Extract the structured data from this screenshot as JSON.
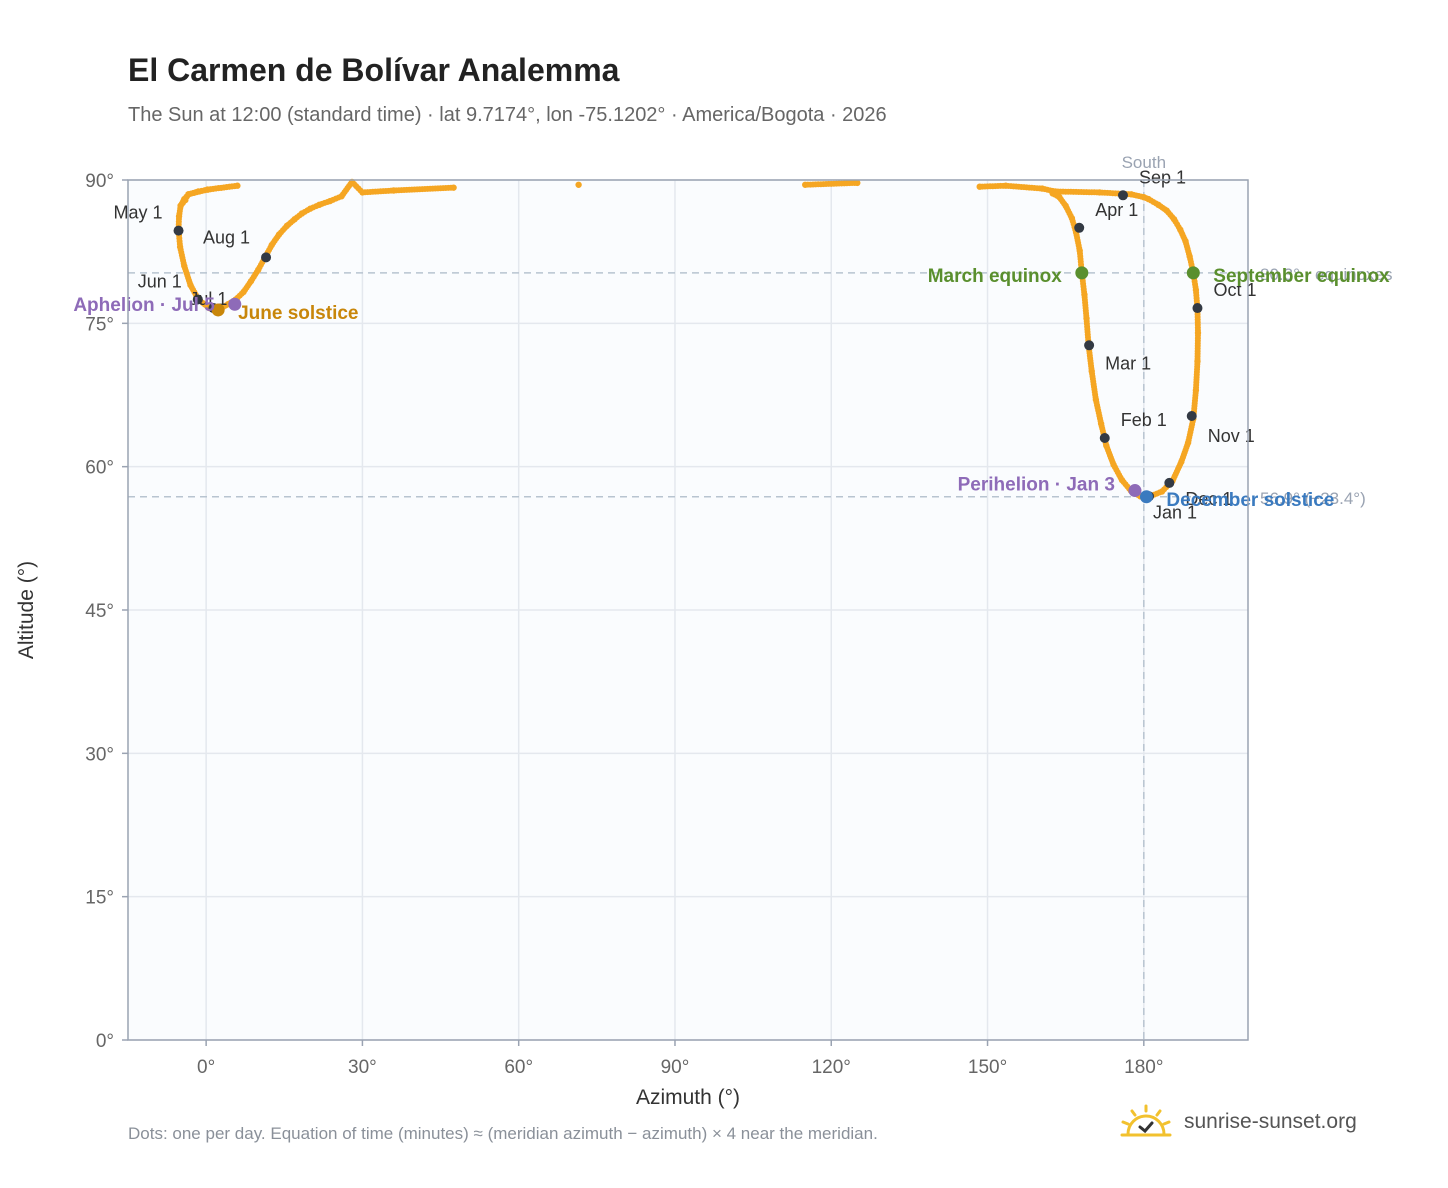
{
  "header": {
    "title": "El Carmen de Bolívar Analemma",
    "subtitle": "The Sun at 12:00 (standard time) · lat 9.7174°, lon -75.1202° · America/Bogota · 2026"
  },
  "footer": {
    "note": "Dots: one per day. Equation of time (minutes) ≈ (meridian azimuth − azimuth) × 4 near the meridian.",
    "brand": "sunrise-sunset.org"
  },
  "colors": {
    "analemma": "#f5a623",
    "month_marker": "#333a44",
    "equinox": "#5a8f2e",
    "june_solstice": "#c8860a",
    "december_solstice": "#3a7abf",
    "apsis": "#8e6bb8",
    "plot_bg": "#fafcfe",
    "grid": "#e4e8ee",
    "frame": "#9aa3b2",
    "reference": "#b8c4d0"
  },
  "chart_data": {
    "type": "scatter",
    "xlabel": "Azimuth (°)",
    "ylabel": "Altitude (°)",
    "xlim": [
      -15,
      200
    ],
    "ylim": [
      0,
      90
    ],
    "x_ticks": [
      {
        "value": 0,
        "label": "0°"
      },
      {
        "value": 30,
        "label": "30°"
      },
      {
        "value": 60,
        "label": "60°"
      },
      {
        "value": 90,
        "label": "90°"
      },
      {
        "value": 120,
        "label": "120°"
      },
      {
        "value": 150,
        "label": "150°"
      },
      {
        "value": 180,
        "label": "180°"
      }
    ],
    "y_ticks": [
      {
        "value": 0,
        "label": "0°"
      },
      {
        "value": 15,
        "label": "15°"
      },
      {
        "value": 30,
        "label": "30°"
      },
      {
        "value": 45,
        "label": "45°"
      },
      {
        "value": 60,
        "label": "60°"
      },
      {
        "value": 75,
        "label": "75°"
      },
      {
        "value": 90,
        "label": "90°"
      }
    ],
    "grid": true,
    "meridian": {
      "azimuth": 180,
      "label": "South"
    },
    "reference_lines": [
      {
        "altitude": 80.28,
        "label": "80.3° · equinoxes"
      },
      {
        "altitude": 56.85,
        "label": "56.9° (−23.4°)"
      }
    ],
    "daily_path": [
      [
        181.0,
        56.85
      ],
      [
        183.5,
        57.4
      ],
      [
        185.5,
        58.5
      ],
      [
        187.2,
        60.5
      ],
      [
        188.5,
        62.5
      ],
      [
        189.5,
        65.0
      ],
      [
        190.0,
        68.0
      ],
      [
        190.3,
        71.0
      ],
      [
        190.4,
        74.0
      ],
      [
        190.3,
        76.5
      ],
      [
        190.0,
        78.5
      ],
      [
        189.5,
        80.28
      ],
      [
        188.8,
        82.0
      ],
      [
        188.0,
        83.6
      ],
      [
        187.0,
        84.8
      ],
      [
        185.8,
        85.9
      ],
      [
        184.4,
        86.8
      ],
      [
        182.8,
        87.4
      ],
      [
        180.9,
        88.0
      ],
      [
        180.0,
        88.2
      ],
      [
        177.6,
        88.5
      ],
      [
        171.5,
        88.7
      ],
      [
        163.0,
        88.8
      ],
      [
        160.5,
        89.1
      ],
      [
        153.5,
        89.4
      ],
      [
        148.5,
        89.3
      ],
      [
        125.0,
        89.7
      ],
      [
        115.0,
        89.5
      ],
      [
        71.5,
        89.5
      ],
      [
        47.5,
        89.2
      ],
      [
        36.0,
        88.9
      ],
      [
        30.0,
        88.7
      ],
      [
        28.0,
        89.8
      ],
      [
        26.0,
        88.3
      ],
      [
        23.8,
        87.8
      ],
      [
        21.7,
        87.4
      ],
      [
        20.0,
        87.0
      ],
      [
        18.4,
        86.5
      ],
      [
        17.0,
        85.9
      ],
      [
        15.5,
        85.2
      ],
      [
        14.0,
        84.3
      ],
      [
        12.6,
        83.2
      ],
      [
        11.3,
        81.9
      ],
      [
        10.0,
        80.6
      ],
      [
        8.6,
        79.4
      ],
      [
        7.2,
        78.3
      ],
      [
        5.7,
        77.5
      ],
      [
        4.2,
        77.0
      ],
      [
        2.3,
        76.4
      ],
      [
        0.6,
        76.6
      ],
      [
        -1.5,
        77.5
      ],
      [
        -3.0,
        79.0
      ],
      [
        -4.2,
        81.0
      ],
      [
        -5.0,
        83.0
      ],
      [
        -5.3,
        84.8
      ],
      [
        -5.2,
        86.2
      ],
      [
        -4.9,
        87.3
      ],
      [
        -4.2,
        88.0
      ],
      [
        -3.4,
        88.5
      ],
      [
        -1.5,
        88.8
      ],
      [
        0.3,
        89.0
      ],
      [
        6.0,
        89.4
      ],
      [
        0.3,
        89.0
      ],
      [
        -3.4,
        88.5
      ],
      [
        -4.9,
        87.3
      ],
      [
        -4.0,
        87.9
      ],
      [
        162.5,
        88.6
      ],
      [
        163.8,
        88.2
      ],
      [
        165.0,
        87.3
      ],
      [
        166.2,
        86.0
      ],
      [
        167.0,
        84.5
      ],
      [
        167.7,
        82.6
      ],
      [
        168.1,
        80.28
      ],
      [
        168.6,
        78.0
      ],
      [
        169.0,
        75.5
      ],
      [
        169.4,
        72.7
      ],
      [
        170.0,
        70.0
      ],
      [
        170.8,
        67.0
      ],
      [
        171.8,
        64.5
      ],
      [
        172.8,
        62.2
      ],
      [
        174.2,
        60.2
      ],
      [
        175.8,
        58.6
      ],
      [
        177.5,
        57.5
      ],
      [
        179.3,
        56.9
      ],
      [
        181.0,
        56.85
      ]
    ],
    "month_markers": [
      {
        "label": "Jan 1",
        "azimuth": 181.0,
        "altitude": 56.9
      },
      {
        "label": "Feb 1",
        "azimuth": 172.5,
        "altitude": 63.0
      },
      {
        "label": "Mar 1",
        "azimuth": 169.5,
        "altitude": 72.7
      },
      {
        "label": "Apr 1",
        "azimuth": 167.6,
        "altitude": 85.0
      },
      {
        "label": "May 1",
        "azimuth": -5.3,
        "altitude": 84.7
      },
      {
        "label": "Jun 1",
        "azimuth": -1.6,
        "altitude": 77.5
      },
      {
        "label": "Jul 1",
        "azimuth": 1.4,
        "altitude": 76.6
      },
      {
        "label": "Aug 1",
        "azimuth": 11.5,
        "altitude": 81.9
      },
      {
        "label": "Sep 1",
        "azimuth": 176.0,
        "altitude": 88.4
      },
      {
        "label": "Oct 1",
        "azimuth": 190.3,
        "altitude": 76.6
      },
      {
        "label": "Nov 1",
        "azimuth": 189.2,
        "altitude": 65.3
      },
      {
        "label": "Dec 1",
        "azimuth": 184.9,
        "altitude": 58.3
      }
    ],
    "events": [
      {
        "label": "March equinox",
        "azimuth": 168.1,
        "altitude": 80.28,
        "kind": "equinox"
      },
      {
        "label": "September equinox",
        "azimuth": 189.5,
        "altitude": 80.28,
        "kind": "equinox"
      },
      {
        "label": "June solstice",
        "azimuth": 2.3,
        "altitude": 76.4,
        "kind": "june_solstice"
      },
      {
        "label": "December solstice",
        "azimuth": 180.5,
        "altitude": 56.85,
        "kind": "december_solstice"
      },
      {
        "label": "Aphelion · Jul 5",
        "azimuth": 5.5,
        "altitude": 77.0,
        "kind": "apsis"
      },
      {
        "label": "Perihelion · Jan 3",
        "azimuth": 178.3,
        "altitude": 57.5,
        "kind": "apsis"
      }
    ]
  }
}
